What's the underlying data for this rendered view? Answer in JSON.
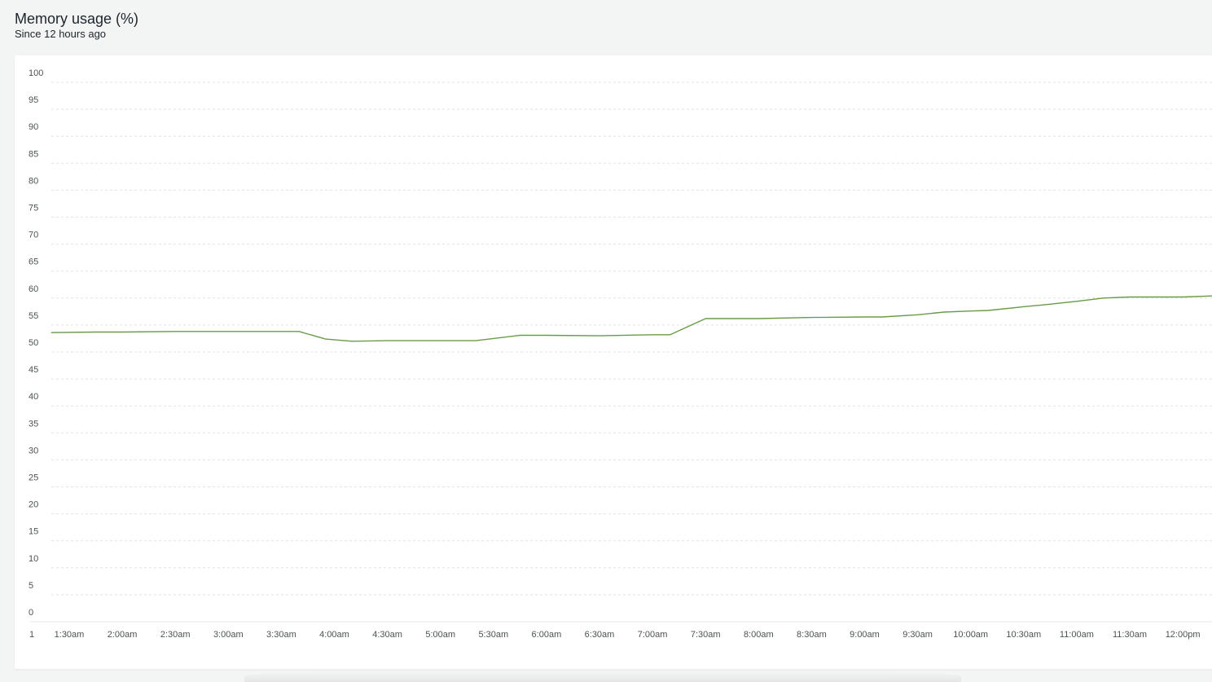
{
  "header": {
    "title": "Memory usage (%)",
    "subtitle": "Since 12 hours ago"
  },
  "colors": {
    "series": "#6a9b47",
    "grid": "#dfe2e2",
    "axis": "#e3e6e6"
  },
  "chart_data": {
    "type": "line",
    "title": "Memory usage (%)",
    "subtitle": "Since 12 hours ago",
    "xlabel": "",
    "ylabel": "",
    "ylim": [
      0,
      100
    ],
    "yticks": [
      0,
      5,
      10,
      15,
      20,
      25,
      30,
      35,
      40,
      45,
      50,
      55,
      60,
      65,
      70,
      75,
      80,
      85,
      90,
      95,
      100
    ],
    "grid": true,
    "legend": "none",
    "x_axis_start_label": "1",
    "xticks": [
      "1:30am",
      "2:00am",
      "2:30am",
      "3:00am",
      "3:30am",
      "4:00am",
      "4:30am",
      "5:00am",
      "5:30am",
      "6:00am",
      "6:30am",
      "7:00am",
      "7:30am",
      "8:00am",
      "8:30am",
      "9:00am",
      "9:30am",
      "10:00am",
      "10:30am",
      "11:00am",
      "11:30am",
      "12:00pm"
    ],
    "x_range": [
      "1:15am",
      "12:20pm"
    ],
    "series": [
      {
        "name": "",
        "x": [
          "1:20am",
          "1:45am",
          "2:00am",
          "2:30am",
          "3:00am",
          "3:30am",
          "3:40am",
          "3:55am",
          "4:10am",
          "4:30am",
          "5:00am",
          "5:20am",
          "5:45am",
          "6:00am",
          "6:30am",
          "7:00am",
          "7:10am",
          "7:30am",
          "7:45am",
          "8:00am",
          "8:30am",
          "9:00am",
          "9:10am",
          "9:30am",
          "9:45am",
          "10:00am",
          "10:10am",
          "10:30am",
          "10:40am",
          "11:00am",
          "11:15am",
          "11:30am",
          "11:45am",
          "12:00pm",
          "12:20pm"
        ],
        "y": [
          53.6,
          53.7,
          53.7,
          53.8,
          53.8,
          53.8,
          53.8,
          52.4,
          52.0,
          52.1,
          52.1,
          52.1,
          53.1,
          53.1,
          53.0,
          53.2,
          53.2,
          56.2,
          56.2,
          56.2,
          56.4,
          56.5,
          56.5,
          56.9,
          57.4,
          57.6,
          57.7,
          58.4,
          58.7,
          59.4,
          60.0,
          60.2,
          60.2,
          60.2,
          60.4
        ]
      }
    ]
  }
}
